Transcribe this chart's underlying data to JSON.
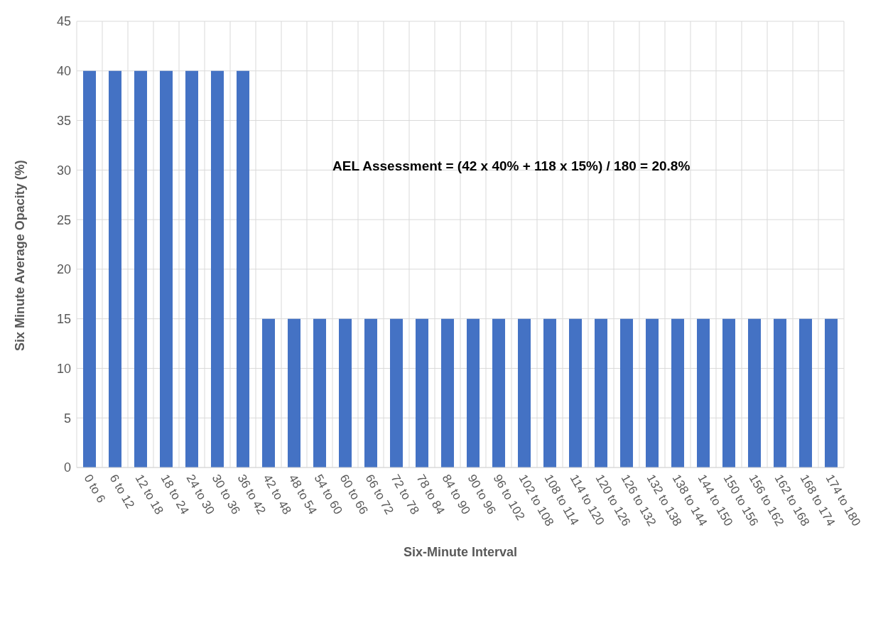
{
  "chart_data": {
    "type": "bar",
    "xlabel": "Six-Minute Interval",
    "ylabel": "Six Minute Average Opacity (%)",
    "categories": [
      "0 to 6",
      "6 to 12",
      "12 to 18",
      "18 to 24",
      "24 to 30",
      "30 to 36",
      "36 to 42",
      "42 to 48",
      "48 to 54",
      "54 to 60",
      "60 to 66",
      "66 to 72",
      "72 to 78",
      "78 to 84",
      "84 to 90",
      "90 to 96",
      "96 to 102",
      "102 to 108",
      "108 to 114",
      "114 to 120",
      "120 to 126",
      "126 to 132",
      "132 to 138",
      "138 to 144",
      "144 to 150",
      "150 to 156",
      "156 to 162",
      "162 to 168",
      "168 to 174",
      "174 to 180"
    ],
    "values": [
      40,
      40,
      40,
      40,
      40,
      40,
      40,
      15,
      15,
      15,
      15,
      15,
      15,
      15,
      15,
      15,
      15,
      15,
      15,
      15,
      15,
      15,
      15,
      15,
      15,
      15,
      15,
      15,
      15,
      15
    ],
    "color": "#4472c4",
    "ylim": [
      0,
      45
    ],
    "yticks": [
      0,
      5,
      10,
      15,
      20,
      25,
      30,
      35,
      40,
      45
    ],
    "grid": true,
    "legend": false,
    "annotations": [
      "AEL Assessment = (42 x 40% + 118 x 15%) / 180 = 20.8%"
    ]
  }
}
